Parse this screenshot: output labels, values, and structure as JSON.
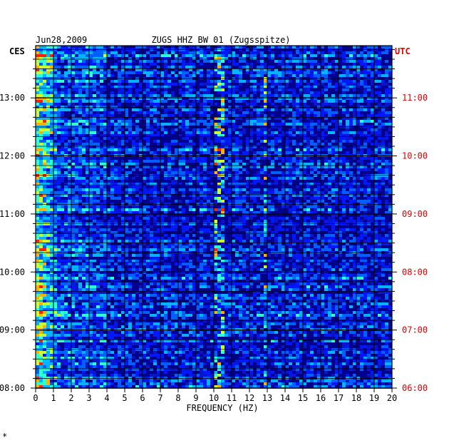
{
  "header": {
    "date": "Jun28,2009",
    "station": "ZUGS HHZ BW 01 (Zugsspitze)"
  },
  "axes": {
    "left_zone": "CES",
    "right_zone": "UTC",
    "xlabel": "FREQUENCY (HZ)"
  },
  "corner_mark": "*",
  "colors": {
    "background": "#0a14c8",
    "grid": "#000000",
    "utc_text": "#e00000",
    "text": "#000000"
  },
  "chart_data": {
    "type": "heatmap",
    "title": "ZUGS HHZ BW 01 (Zugsspitze)",
    "subtitle": "Jun28,2009",
    "xlabel": "FREQUENCY (HZ)",
    "xlim": [
      0,
      20
    ],
    "x_ticks": [
      "0",
      "1",
      "2",
      "3",
      "4",
      "5",
      "6",
      "7",
      "8",
      "9",
      "10",
      "11",
      "12",
      "13",
      "14",
      "15",
      "16",
      "17",
      "18",
      "19",
      "20"
    ],
    "y_left_ticks": [
      "08:00",
      "09:00",
      "10:00",
      "11:00",
      "12:00",
      "13:00"
    ],
    "y_right_ticks": [
      "06:00",
      "07:00",
      "08:00",
      "09:00",
      "10:00",
      "11:00"
    ],
    "time_range_ces_hours": [
      8.0,
      13.9
    ],
    "color_scale": [
      "#00008c",
      "#0018ff",
      "#0060ff",
      "#00b4ff",
      "#30ffd0",
      "#c8ff30",
      "#ffb000",
      "#ff2000"
    ],
    "features": [
      {
        "type": "low-frequency band",
        "freq_hz": [
          0,
          1.2
        ],
        "intensity": "high"
      },
      {
        "type": "persistent line",
        "freq_hz": 10.2,
        "intensity": "high"
      },
      {
        "type": "persistent line",
        "freq_hz": 12.8,
        "intensity": "medium"
      },
      {
        "type": "burst",
        "freq_hz": 9.5,
        "time_ces": "08:40",
        "intensity": "high"
      }
    ]
  }
}
